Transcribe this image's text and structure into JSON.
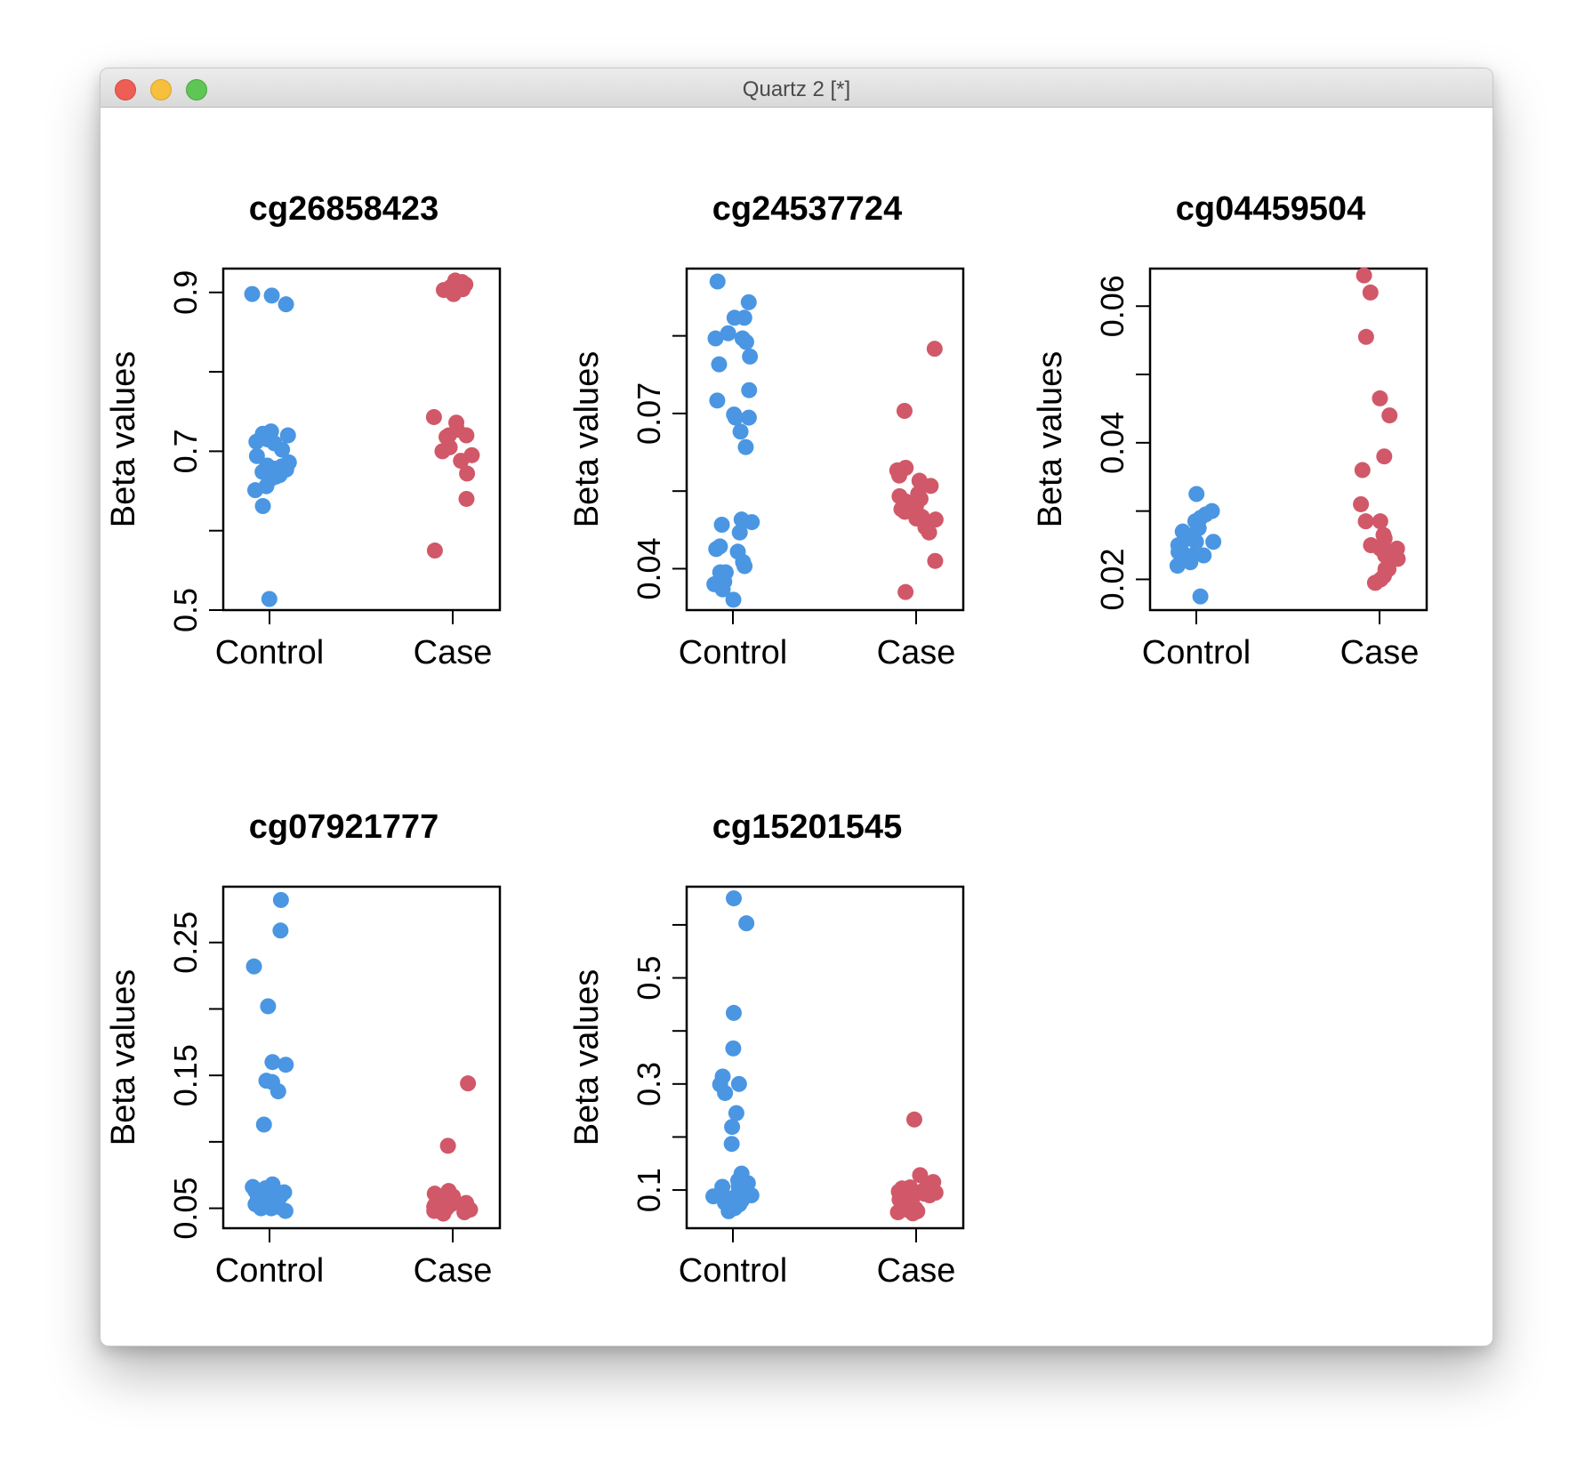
{
  "window": {
    "title": "Quartz 2 [*]"
  },
  "colors": {
    "control": "#4a96e3",
    "case": "#d15868",
    "axis": "#000000"
  },
  "chart_data": [
    {
      "type": "scatter",
      "title": "cg26858423",
      "ylabel": "Beta values",
      "categories": [
        "Control",
        "Case"
      ],
      "ylim": [
        0.5,
        0.93
      ],
      "yticks": [
        "0.5",
        "0.7",
        "0.9"
      ],
      "series": [
        {
          "category": "Control",
          "color": "control",
          "values": [
            0.885,
            0.898,
            0.896,
            0.718,
            0.715,
            0.71,
            0.712,
            0.722,
            0.725,
            0.72,
            0.702,
            0.694,
            0.686,
            0.681,
            0.682,
            0.677,
            0.676,
            0.678,
            0.674,
            0.67,
            0.666,
            0.668,
            0.656,
            0.651,
            0.631,
            0.514
          ]
        },
        {
          "category": "Case",
          "color": "case",
          "values": [
            0.913,
            0.915,
            0.907,
            0.903,
            0.91,
            0.904,
            0.9,
            0.898,
            0.898,
            0.743,
            0.736,
            0.727,
            0.72,
            0.72,
            0.718,
            0.705,
            0.7,
            0.695,
            0.688,
            0.672,
            0.64,
            0.575
          ]
        }
      ]
    },
    {
      "type": "scatter",
      "title": "cg24537724",
      "ylabel": "Beta values",
      "categories": [
        "Control",
        "Case"
      ],
      "ylim": [
        0.032,
        0.098
      ],
      "yticks": [
        "0.04",
        "0.07"
      ],
      "series": [
        {
          "category": "Control",
          "color": "control",
          "values": [
            0.0955,
            0.0915,
            0.0885,
            0.0885,
            0.0855,
            0.0845,
            0.0845,
            0.0838,
            0.081,
            0.0795,
            0.0745,
            0.0725,
            0.0698,
            0.0692,
            0.0692,
            0.0665,
            0.0635,
            0.0495,
            0.049,
            0.0485,
            0.047,
            0.0443,
            0.0438,
            0.0433,
            0.0413,
            0.0405,
            0.0393,
            0.0393,
            0.0375,
            0.037,
            0.036,
            0.034
          ]
        },
        {
          "category": "Case",
          "color": "case",
          "values": [
            0.0825,
            0.0705,
            0.0595,
            0.059,
            0.058,
            0.057,
            0.056,
            0.0545,
            0.054,
            0.0535,
            0.053,
            0.052,
            0.0515,
            0.051,
            0.05,
            0.0497,
            0.0495,
            0.048,
            0.047,
            0.0415,
            0.0355
          ]
        }
      ]
    },
    {
      "type": "scatter",
      "title": "cg04459504",
      "ylabel": "Beta values",
      "categories": [
        "Control",
        "Case"
      ],
      "ylim": [
        0.0155,
        0.0655
      ],
      "yticks": [
        "0.02",
        "0.04",
        "0.06"
      ],
      "series": [
        {
          "category": "Control",
          "color": "control",
          "values": [
            0.0325,
            0.03,
            0.0295,
            0.029,
            0.0285,
            0.0275,
            0.027,
            0.0265,
            0.026,
            0.0255,
            0.0255,
            0.025,
            0.0245,
            0.024,
            0.0235,
            0.0235,
            0.023,
            0.0225,
            0.022,
            0.0175
          ]
        },
        {
          "category": "Case",
          "color": "case",
          "values": [
            0.0645,
            0.062,
            0.0555,
            0.0465,
            0.044,
            0.038,
            0.036,
            0.031,
            0.0285,
            0.0285,
            0.0265,
            0.026,
            0.025,
            0.0245,
            0.0245,
            0.024,
            0.0235,
            0.023,
            0.0215,
            0.0215,
            0.0205,
            0.02,
            0.0195,
            0.0195
          ]
        }
      ]
    },
    {
      "type": "scatter",
      "title": "cg07921777",
      "ylabel": "Beta values",
      "categories": [
        "Control",
        "Case"
      ],
      "ylim": [
        0.035,
        0.292
      ],
      "yticks": [
        "0.05",
        "0.15",
        "0.25"
      ],
      "series": [
        {
          "category": "Control",
          "color": "control",
          "values": [
            0.282,
            0.259,
            0.232,
            0.202,
            0.16,
            0.158,
            0.146,
            0.145,
            0.138,
            0.113,
            0.068,
            0.066,
            0.065,
            0.064,
            0.063,
            0.062,
            0.061,
            0.06,
            0.059,
            0.058,
            0.057,
            0.056,
            0.055,
            0.054,
            0.053,
            0.052,
            0.051,
            0.05,
            0.05,
            0.048
          ]
        },
        {
          "category": "Case",
          "color": "case",
          "values": [
            0.144,
            0.097,
            0.063,
            0.061,
            0.06,
            0.059,
            0.058,
            0.057,
            0.056,
            0.055,
            0.054,
            0.053,
            0.052,
            0.051,
            0.05,
            0.049,
            0.048,
            0.047,
            0.047,
            0.046
          ]
        }
      ]
    },
    {
      "type": "scatter",
      "title": "cg15201545",
      "ylabel": "Beta values",
      "categories": [
        "Control",
        "Case"
      ],
      "ylim": [
        0.028,
        0.672
      ],
      "yticks": [
        "0.1",
        "0.3",
        "0.5"
      ],
      "series": [
        {
          "category": "Control",
          "color": "control",
          "values": [
            0.65,
            0.603,
            0.434,
            0.367,
            0.314,
            0.3,
            0.299,
            0.283,
            0.245,
            0.219,
            0.187,
            0.131,
            0.118,
            0.113,
            0.107,
            0.106,
            0.098,
            0.095,
            0.092,
            0.09,
            0.088,
            0.084,
            0.08,
            0.078,
            0.076,
            0.073,
            0.066,
            0.06
          ]
        },
        {
          "category": "Case",
          "color": "case",
          "values": [
            0.233,
            0.128,
            0.115,
            0.11,
            0.108,
            0.105,
            0.103,
            0.1,
            0.097,
            0.095,
            0.093,
            0.09,
            0.088,
            0.085,
            0.082,
            0.08,
            0.075,
            0.07,
            0.065,
            0.062,
            0.06,
            0.058,
            0.056
          ]
        }
      ]
    }
  ]
}
